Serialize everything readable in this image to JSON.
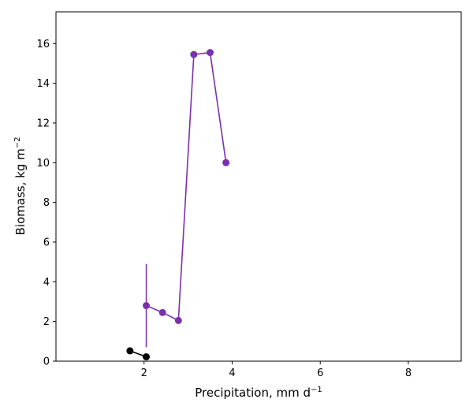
{
  "chart_data": {
    "type": "line",
    "xlabel": "Precipitation,  mm d",
    "xlabel_sup": "−1",
    "ylabel": "Biomass,  kg m",
    "ylabel_sup": "−2",
    "xlim": [
      0.0,
      9.2
    ],
    "ylim": [
      0,
      17.6
    ],
    "xticks": [
      2,
      4,
      6,
      8
    ],
    "yticks": [
      0,
      2,
      4,
      6,
      8,
      10,
      12,
      14,
      16
    ],
    "grid": false,
    "series": [
      {
        "color": "#7b2fae",
        "x": [
          2.05,
          2.42,
          2.78,
          3.13,
          3.5,
          3.86
        ],
        "y": [
          2.8,
          2.45,
          2.05,
          15.45,
          15.55,
          10.0
        ],
        "error_bars": [
          {
            "x": 2.05,
            "low": 0.7,
            "high": 4.9
          }
        ]
      },
      {
        "color": "#000000",
        "x": [
          1.68,
          2.05
        ],
        "y": [
          0.52,
          0.22
        ]
      }
    ]
  }
}
